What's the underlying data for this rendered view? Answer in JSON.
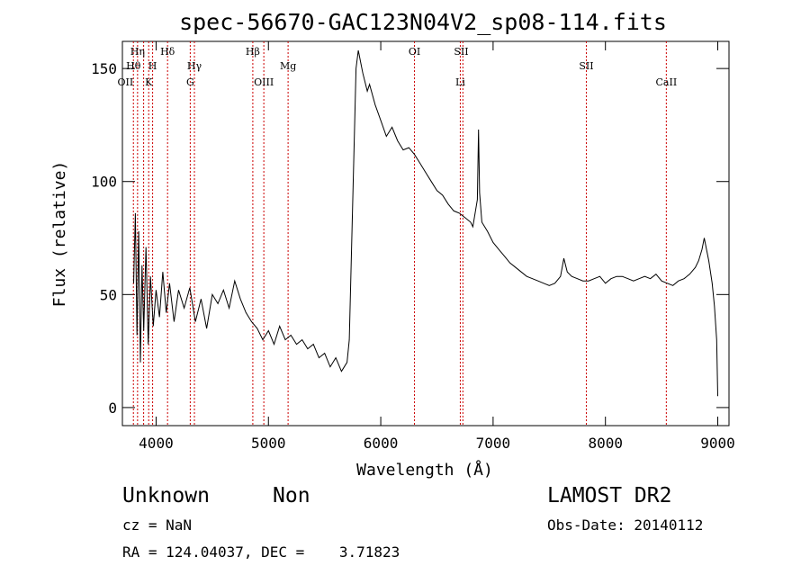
{
  "chart_data": {
    "type": "line",
    "title": "spec-56670-GAC123N04V2_sp08-114.fits",
    "xlabel": "Wavelength (Å)",
    "ylabel": "Flux (relative)",
    "xlim": [
      3700,
      9100
    ],
    "ylim": [
      -8,
      162
    ],
    "xticks": [
      4000,
      5000,
      6000,
      7000,
      8000,
      9000
    ],
    "yticks": [
      0,
      50,
      100,
      150
    ],
    "grid": false,
    "line_color": "#000000",
    "marker_color": "#cc0000",
    "series": [
      {
        "x": [
          3800,
          3815,
          3830,
          3845,
          3860,
          3875,
          3890,
          3910,
          3930,
          3950,
          3975,
          4000,
          4030,
          4060,
          4090,
          4120,
          4160,
          4200,
          4250,
          4300,
          4350,
          4400,
          4450,
          4500,
          4550,
          4600,
          4650,
          4700,
          4750,
          4800,
          4850,
          4900,
          4950,
          5000,
          5050,
          5100,
          5150,
          5200,
          5250,
          5300,
          5350,
          5400,
          5450,
          5500,
          5550,
          5600,
          5650,
          5700,
          5720,
          5740,
          5760,
          5780,
          5800,
          5820,
          5840,
          5860,
          5880,
          5900,
          5950,
          6000,
          6050,
          6100,
          6150,
          6200,
          6250,
          6300,
          6350,
          6400,
          6450,
          6500,
          6550,
          6600,
          6650,
          6700,
          6750,
          6800,
          6820,
          6840,
          6860,
          6870,
          6880,
          6900,
          6950,
          7000,
          7050,
          7100,
          7150,
          7200,
          7250,
          7300,
          7350,
          7400,
          7450,
          7500,
          7550,
          7600,
          7630,
          7660,
          7700,
          7750,
          7800,
          7850,
          7900,
          7950,
          8000,
          8050,
          8100,
          8150,
          8200,
          8250,
          8300,
          8350,
          8400,
          8450,
          8500,
          8550,
          8600,
          8650,
          8700,
          8750,
          8800,
          8830,
          8860,
          8880,
          8900,
          8920,
          8950,
          8970,
          8990,
          9000
        ],
        "y": [
          55,
          86,
          32,
          78,
          20,
          63,
          34,
          71,
          28,
          58,
          36,
          52,
          40,
          60,
          42,
          55,
          38,
          52,
          44,
          53,
          38,
          48,
          35,
          50,
          46,
          52,
          44,
          56,
          48,
          42,
          38,
          35,
          30,
          34,
          28,
          36,
          30,
          32,
          28,
          30,
          26,
          28,
          22,
          24,
          18,
          22,
          16,
          20,
          30,
          70,
          110,
          150,
          158,
          153,
          148,
          144,
          140,
          143,
          134,
          127,
          120,
          124,
          118,
          114,
          115,
          112,
          108,
          104,
          100,
          96,
          94,
          90,
          87,
          86,
          84,
          82,
          80,
          86,
          92,
          123,
          95,
          82,
          78,
          73,
          70,
          67,
          64,
          62,
          60,
          58,
          57,
          56,
          55,
          54,
          55,
          58,
          66,
          60,
          58,
          57,
          56,
          56,
          57,
          58,
          55,
          57,
          58,
          58,
          57,
          56,
          57,
          58,
          57,
          59,
          56,
          55,
          54,
          56,
          57,
          59,
          62,
          65,
          70,
          75,
          70,
          65,
          55,
          45,
          30,
          5
        ]
      }
    ],
    "spectral_lines": [
      {
        "label": "Hη",
        "x": 3835,
        "row": 0
      },
      {
        "label": "Hδ",
        "x": 4102,
        "row": 0
      },
      {
        "label": "Hβ",
        "x": 4861,
        "row": 0
      },
      {
        "label": "OI",
        "x": 6300,
        "row": 0
      },
      {
        "label": "SII",
        "x": 6716,
        "row": 0
      },
      {
        "label": "Hθ",
        "x": 3798,
        "row": 1
      },
      {
        "label": "H",
        "x": 3969,
        "row": 1
      },
      {
        "label": "Hγ",
        "x": 4341,
        "row": 1
      },
      {
        "label": "Mg",
        "x": 5175,
        "row": 1
      },
      {
        "label": "SII",
        "x": 7830,
        "row": 1
      },
      {
        "label": "OII",
        "x": 3727,
        "row": 2
      },
      {
        "label": "K",
        "x": 3934,
        "row": 2
      },
      {
        "label": "G",
        "x": 4304,
        "row": 2
      },
      {
        "label": "OIII",
        "x": 4959,
        "row": 2
      },
      {
        "label": "Li",
        "x": 6708,
        "row": 2
      },
      {
        "label": "CaII",
        "x": 8542,
        "row": 2
      }
    ],
    "marker_lines_x": [
      3798,
      3835,
      3889,
      3934,
      3969,
      4102,
      4304,
      4341,
      4861,
      4959,
      5175,
      6300,
      6708,
      6731,
      7830,
      8542
    ]
  },
  "info": {
    "object_class": "Unknown",
    "subclass": "Non",
    "cz": "cz = NaN",
    "radec": "RA = 124.04037, DEC =    3.71823",
    "survey": "LAMOST DR2",
    "obs_date": "Obs-Date: 20140112"
  }
}
